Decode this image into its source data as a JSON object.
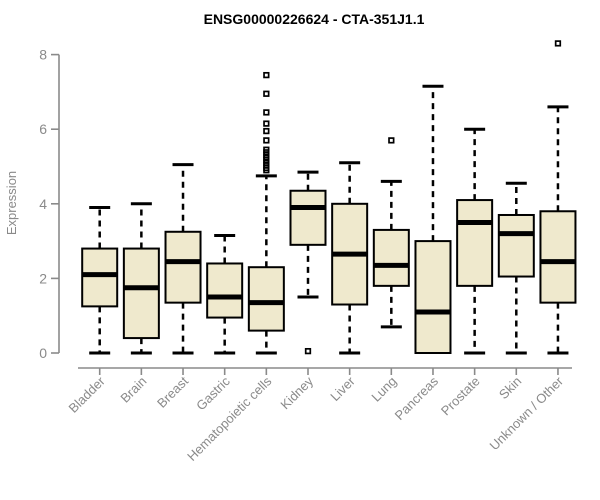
{
  "chart_data": {
    "type": "boxplot",
    "title": "ENSG00000226624 - CTA-351J1.1",
    "ylabel": "Expression",
    "xlabel": "",
    "ylim": [
      0,
      8.4
    ],
    "yticks": [
      0,
      2,
      4,
      6,
      8
    ],
    "grid": false,
    "legend": null,
    "colors": {
      "box_fill": "#efe9cd",
      "box_stroke": "#000000",
      "median": "#000000",
      "whisker": "#000000",
      "outlier": "#000000",
      "axis": "#8a8a8a",
      "title": "#000000",
      "background": "#ffffff"
    },
    "categories": [
      "Bladder",
      "Brain",
      "Breast",
      "Gastric",
      "Hematopoietic cells",
      "Kidney",
      "Liver",
      "Lung",
      "Pancreas",
      "Prostate",
      "Skin",
      "Unknown / Other"
    ],
    "series": [
      {
        "category": "Bladder",
        "slug": "bladder",
        "whisker_low": 0,
        "q1": 1.25,
        "median": 2.1,
        "q3": 2.8,
        "whisker_high": 3.9,
        "outliers": []
      },
      {
        "category": "Brain",
        "slug": "brain",
        "whisker_low": 0,
        "q1": 0.4,
        "median": 1.75,
        "q3": 2.8,
        "whisker_high": 4.0,
        "outliers": []
      },
      {
        "category": "Breast",
        "slug": "breast",
        "whisker_low": 0,
        "q1": 1.35,
        "median": 2.45,
        "q3": 3.25,
        "whisker_high": 5.05,
        "outliers": []
      },
      {
        "category": "Gastric",
        "slug": "gastric",
        "whisker_low": 0,
        "q1": 0.95,
        "median": 1.5,
        "q3": 2.4,
        "whisker_high": 3.15,
        "outliers": []
      },
      {
        "category": "Hematopoietic cells",
        "slug": "hematopoietic-cells",
        "whisker_low": 0,
        "q1": 0.6,
        "median": 1.35,
        "q3": 2.3,
        "whisker_high": 4.75,
        "outliers": [
          7.45,
          6.95,
          6.45,
          6.15,
          5.95,
          5.7,
          5.45,
          5.38,
          5.31,
          5.24,
          5.17,
          5.1,
          5.03,
          4.96,
          4.9
        ]
      },
      {
        "category": "Kidney",
        "slug": "kidney",
        "whisker_low": 1.5,
        "q1": 2.9,
        "median": 3.9,
        "q3": 4.35,
        "whisker_high": 4.85,
        "outliers": [
          0.05
        ]
      },
      {
        "category": "Liver",
        "slug": "liver",
        "whisker_low": 0,
        "q1": 1.3,
        "median": 2.65,
        "q3": 4.0,
        "whisker_high": 5.1,
        "outliers": []
      },
      {
        "category": "Lung",
        "slug": "lung",
        "whisker_low": 0.7,
        "q1": 1.8,
        "median": 2.35,
        "q3": 3.3,
        "whisker_high": 4.6,
        "outliers": [
          5.7
        ]
      },
      {
        "category": "Pancreas",
        "slug": "pancreas",
        "whisker_low": 0,
        "q1": 0,
        "median": 1.1,
        "q3": 3.0,
        "whisker_high": 7.15,
        "outliers": []
      },
      {
        "category": "Prostate",
        "slug": "prostate",
        "whisker_low": 0,
        "q1": 1.8,
        "median": 3.5,
        "q3": 4.1,
        "whisker_high": 6.0,
        "outliers": []
      },
      {
        "category": "Skin",
        "slug": "skin",
        "whisker_low": 0,
        "q1": 2.05,
        "median": 3.2,
        "q3": 3.7,
        "whisker_high": 4.55,
        "outliers": []
      },
      {
        "category": "Unknown / Other",
        "slug": "unknown-other",
        "whisker_low": 0,
        "q1": 1.35,
        "median": 2.45,
        "q3": 3.8,
        "whisker_high": 6.6,
        "outliers": [
          8.3
        ]
      }
    ]
  }
}
